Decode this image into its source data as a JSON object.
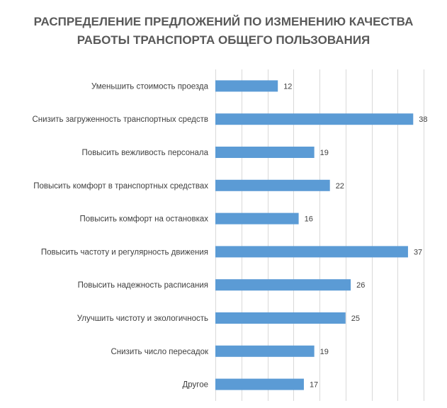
{
  "chart_data": {
    "type": "bar",
    "orientation": "horizontal",
    "title_lines": [
      "РАСПРЕДЕЛЕНИЕ ПРЕДЛОЖЕНИЙ ПО ИЗМЕНЕНИЮ КАЧЕСТВА",
      "РАБОТЫ ТРАНСПОРТА ОБЩЕГО ПОЛЬЗОВАНИЯ"
    ],
    "categories": [
      "Уменьшить стоимость проезда",
      "Снизить загруженность транспортных средств",
      "Повысить вежливость персонала",
      "Повысить комфорт в транспортных средствах",
      "Повысить комфорт на остановках",
      "Повысить частоту и регулярность движения",
      "Повысить надежность расписания",
      "Улучшить чистоту и экологичность",
      "Снизить число пересадок",
      "Другое"
    ],
    "values": [
      12,
      38,
      19,
      22,
      16,
      37,
      26,
      25,
      19,
      17
    ],
    "data_labels": true,
    "xlim": [
      0,
      40
    ],
    "grid": true,
    "bar_color": "#5B9BD5",
    "grid_color": "#D9D9D9"
  }
}
